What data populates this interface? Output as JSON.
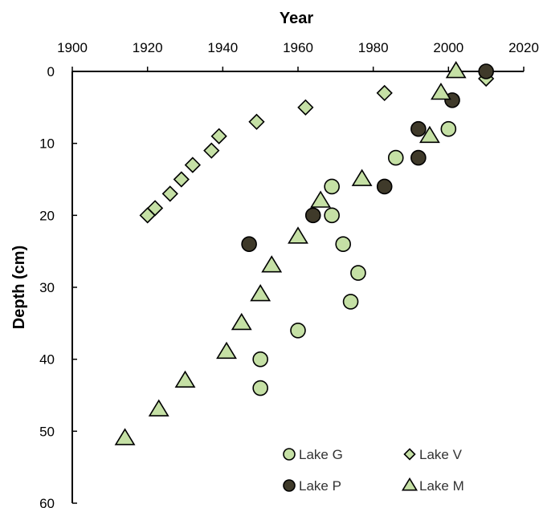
{
  "chart_data": {
    "type": "scatter",
    "title": "",
    "xlabel": "Year",
    "ylabel": "Depth (cm)",
    "x_axis_position": "top",
    "y_axis_inverted": true,
    "xlim": [
      1900,
      2020
    ],
    "ylim": [
      0,
      60
    ],
    "xticks": [
      1900,
      1920,
      1940,
      1960,
      1980,
      2000,
      2020
    ],
    "yticks": [
      0,
      10,
      20,
      30,
      40,
      50,
      60
    ],
    "grid": false,
    "legend_position": "bottom-right",
    "series": [
      {
        "name": "Lake G",
        "marker": "circle",
        "color": "#c5e0a5",
        "points": [
          [
            2000,
            8
          ],
          [
            1986,
            12
          ],
          [
            1969,
            16
          ],
          [
            1969,
            20
          ],
          [
            1972,
            24
          ],
          [
            1976,
            28
          ],
          [
            1974,
            32
          ],
          [
            1960,
            36
          ],
          [
            1950,
            40
          ],
          [
            1950,
            44
          ]
        ]
      },
      {
        "name": "Lake V",
        "marker": "diamond",
        "color": "#c5e0a5",
        "points": [
          [
            2010,
            1
          ],
          [
            1983,
            3
          ],
          [
            1962,
            5
          ],
          [
            1949,
            7
          ],
          [
            1939,
            9
          ],
          [
            1937,
            11
          ],
          [
            1932,
            13
          ],
          [
            1929,
            15
          ],
          [
            1926,
            17
          ],
          [
            1922,
            19
          ],
          [
            1920,
            20
          ]
        ]
      },
      {
        "name": "Lake P",
        "marker": "circle",
        "color": "#3f3a2a",
        "points": [
          [
            2010,
            0
          ],
          [
            2001,
            4
          ],
          [
            1992,
            8
          ],
          [
            1992,
            12
          ],
          [
            1983,
            16
          ],
          [
            1964,
            20
          ],
          [
            1947,
            24
          ]
        ]
      },
      {
        "name": "Lake M",
        "marker": "triangle",
        "color": "#c5e0a5",
        "points": [
          [
            2002,
            0
          ],
          [
            1998,
            3
          ],
          [
            1995,
            9
          ],
          [
            1977,
            15
          ],
          [
            1966,
            18
          ],
          [
            1960,
            23
          ],
          [
            1953,
            27
          ],
          [
            1950,
            31
          ],
          [
            1945,
            35
          ],
          [
            1941,
            39
          ],
          [
            1930,
            43
          ],
          [
            1923,
            47
          ],
          [
            1914,
            51
          ]
        ]
      }
    ]
  }
}
